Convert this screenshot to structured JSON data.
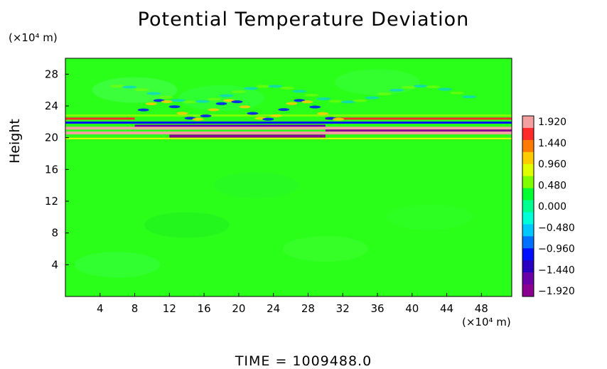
{
  "chart_data": {
    "type": "heatmap",
    "title": "Potential Temperature Deviation",
    "ylabel": "Height",
    "xlabel": "",
    "y_unit": "(×10⁴ m)",
    "x_unit": "(×10⁴ m)",
    "xlim": [
      0,
      51.5
    ],
    "ylim": [
      0,
      30
    ],
    "x_ticks": [
      "4",
      "8",
      "12",
      "16",
      "20",
      "24",
      "28",
      "32",
      "36",
      "40",
      "44",
      "48"
    ],
    "y_ticks": [
      "4",
      "8",
      "12",
      "16",
      "20",
      "24",
      "28"
    ],
    "x_tick_values": [
      4,
      8,
      12,
      16,
      20,
      24,
      28,
      32,
      36,
      40,
      44,
      48
    ],
    "y_tick_values": [
      4,
      8,
      12,
      16,
      20,
      24,
      28
    ],
    "colorbar": {
      "labels": [
        "1.920",
        "1.440",
        "0.960",
        "0.480",
        "0.000",
        "−0.480",
        "−0.960",
        "−1.440",
        "−1.920"
      ],
      "colors": [
        "#f4a0a0",
        "#ff2a2a",
        "#ff7a00",
        "#ffcc00",
        "#e0ff00",
        "#80ff00",
        "#00ff30",
        "#00ff90",
        "#00ffd8",
        "#00c8ff",
        "#0070ff",
        "#0010ff",
        "#2a00c0",
        "#6a00a8",
        "#8a0090"
      ]
    },
    "background_value": 0.0,
    "bands": [
      {
        "y": 20.3,
        "value": -1.92,
        "note": "dark purple band near y≈20"
      },
      {
        "y": 20.8,
        "value": 1.92,
        "note": "pink band above"
      },
      {
        "y": 21.8,
        "value": -1.4
      },
      {
        "y": 22.5,
        "value": 1.4
      }
    ],
    "footer": "TIME  =  1009488.0"
  }
}
